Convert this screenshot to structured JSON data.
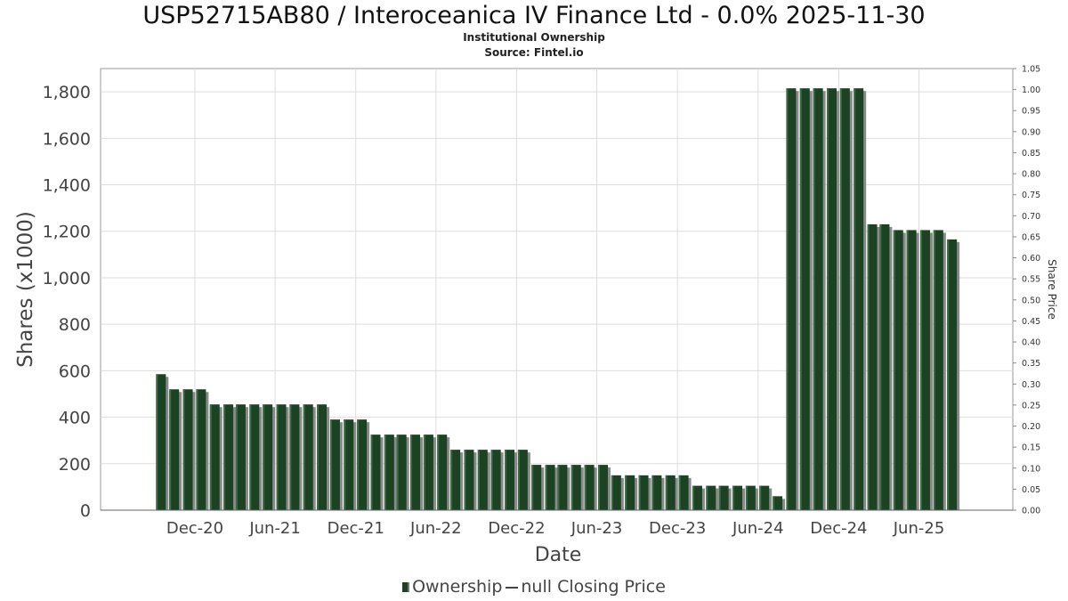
{
  "title": "USP52715AB80 / Interoceanica IV Finance Ltd - 0.0% 2025-11-30",
  "subtitle": "Institutional Ownership",
  "source": "Source: Fintel.io",
  "legend": {
    "ownership": "Ownership",
    "price": "null Closing Price"
  },
  "colors": {
    "bar": "#1b4323",
    "bar_shadow": "#8a8a8a",
    "grid": "#dddddd"
  },
  "chart_data": {
    "type": "bar",
    "xlabel": "Date",
    "ylabel": "Shares (x1000)",
    "y2label": "Share Price",
    "ylim": [
      0,
      1900
    ],
    "y_ticks": [
      0,
      200,
      400,
      600,
      800,
      1000,
      1200,
      1400,
      1600,
      1800
    ],
    "y_tick_labels": [
      "0",
      "200",
      "400",
      "600",
      "800",
      "1,000",
      "1,200",
      "1,400",
      "1,600",
      "1,800"
    ],
    "y2lim": [
      0,
      1.05
    ],
    "y2_ticks": [
      "0.00",
      "0.05",
      "0.10",
      "0.15",
      "0.20",
      "0.25",
      "0.30",
      "0.35",
      "0.40",
      "0.45",
      "0.50",
      "0.55",
      "0.60",
      "0.65",
      "0.70",
      "0.75",
      "0.80",
      "0.85",
      "0.90",
      "0.95",
      "1.00",
      "1.05"
    ],
    "x_start": "2020-05-01",
    "x_end": "2025-12-31",
    "x_ticks": [
      {
        "date": "2020-12-01",
        "label": "Dec-20"
      },
      {
        "date": "2021-06-01",
        "label": "Jun-21"
      },
      {
        "date": "2021-12-01",
        "label": "Dec-21"
      },
      {
        "date": "2022-06-01",
        "label": "Jun-22"
      },
      {
        "date": "2022-12-01",
        "label": "Dec-22"
      },
      {
        "date": "2023-06-01",
        "label": "Jun-23"
      },
      {
        "date": "2023-12-01",
        "label": "Dec-23"
      },
      {
        "date": "2024-06-01",
        "label": "Jun-24"
      },
      {
        "date": "2024-12-01",
        "label": "Dec-24"
      },
      {
        "date": "2025-06-01",
        "label": "Jun-25"
      }
    ],
    "grid": true,
    "legend_position": "bottom",
    "series": [
      {
        "name": "Ownership",
        "x": [
          "2020-09-15",
          "2020-10-15",
          "2020-11-15",
          "2020-12-15",
          "2021-01-15",
          "2021-02-15",
          "2021-03-15",
          "2021-04-15",
          "2021-05-15",
          "2021-06-15",
          "2021-07-15",
          "2021-08-15",
          "2021-09-15",
          "2021-10-15",
          "2021-11-15",
          "2021-12-15",
          "2022-01-15",
          "2022-02-15",
          "2022-03-15",
          "2022-04-15",
          "2022-05-15",
          "2022-06-15",
          "2022-07-15",
          "2022-08-15",
          "2022-09-15",
          "2022-10-15",
          "2022-11-15",
          "2022-12-15",
          "2023-01-15",
          "2023-02-15",
          "2023-03-15",
          "2023-04-15",
          "2023-05-15",
          "2023-06-15",
          "2023-07-15",
          "2023-08-15",
          "2023-09-15",
          "2023-10-15",
          "2023-11-15",
          "2023-12-15",
          "2024-01-15",
          "2024-02-15",
          "2024-03-15",
          "2024-04-15",
          "2024-05-15",
          "2024-06-15",
          "2024-07-15",
          "2024-08-15",
          "2024-09-15",
          "2024-10-15",
          "2024-11-15",
          "2024-12-15",
          "2025-01-15",
          "2025-02-15",
          "2025-03-15",
          "2025-04-15",
          "2025-05-15",
          "2025-06-15",
          "2025-07-15",
          "2025-08-15"
        ],
        "values": [
          585,
          520,
          520,
          520,
          455,
          455,
          455,
          455,
          455,
          455,
          455,
          455,
          455,
          390,
          390,
          390,
          325,
          325,
          325,
          325,
          325,
          325,
          260,
          260,
          260,
          260,
          260,
          260,
          195,
          195,
          195,
          195,
          195,
          195,
          150,
          150,
          150,
          150,
          150,
          150,
          105,
          105,
          105,
          105,
          105,
          105,
          60,
          1815,
          1815,
          1815,
          1815,
          1815,
          1815,
          1230,
          1230,
          1205,
          1205,
          1205,
          1205,
          1165
        ]
      }
    ]
  }
}
